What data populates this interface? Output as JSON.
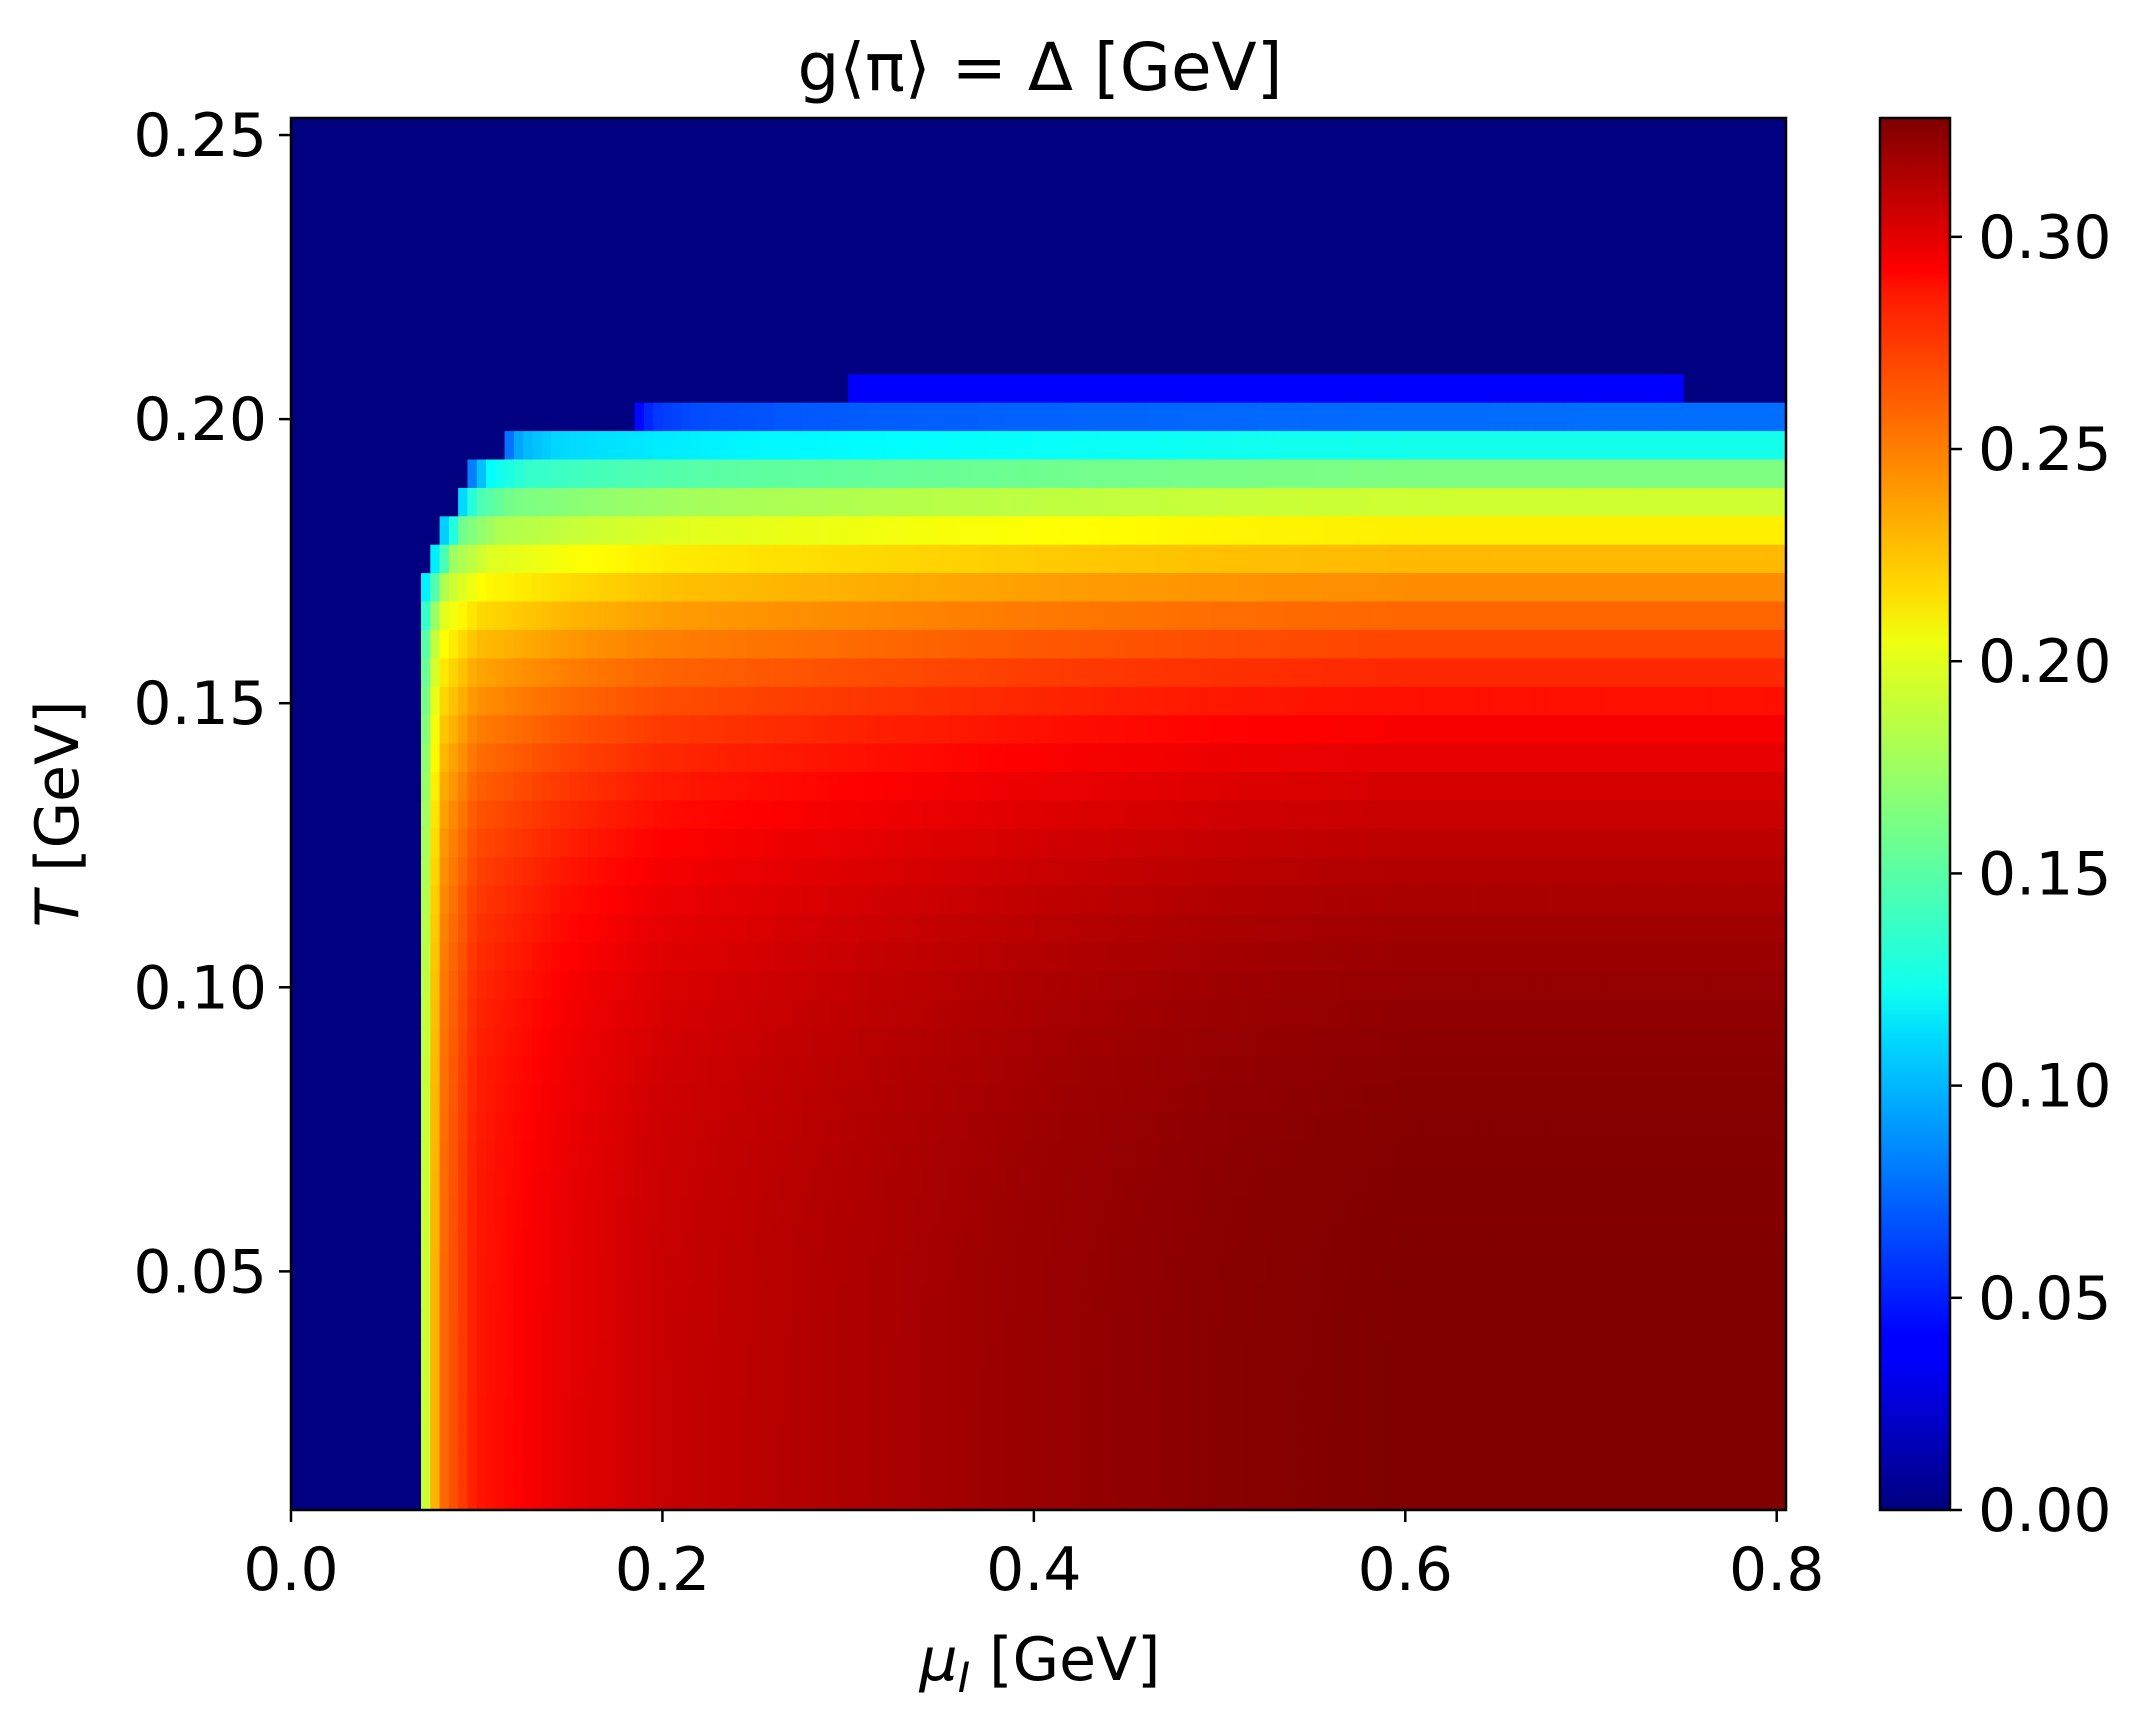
{
  "chart_data": {
    "type": "heatmap",
    "title": "g⟨π⟩ = Δ [GeV]",
    "xlabel": "μI [GeV]",
    "ylabel": "T [GeV]",
    "xlim": [
      0.0,
      0.805
    ],
    "ylim": [
      0.008,
      0.253
    ],
    "x_ticks": [
      "0.0",
      "0.2",
      "0.4",
      "0.6",
      "0.8"
    ],
    "x_tick_values": [
      0.0,
      0.2,
      0.4,
      0.6,
      0.8
    ],
    "y_ticks": [
      "0.05",
      "0.10",
      "0.15",
      "0.20",
      "0.25"
    ],
    "y_tick_values": [
      0.05,
      0.1,
      0.15,
      0.2,
      0.25
    ],
    "colormap": "jet",
    "colorbar": {
      "range": [
        0.0,
        0.328
      ],
      "ticks": [
        "0.00",
        "0.05",
        "0.10",
        "0.15",
        "0.20",
        "0.25",
        "0.30"
      ],
      "tick_values": [
        0.0,
        0.05,
        0.1,
        0.15,
        0.2,
        0.25,
        0.3
      ]
    },
    "grid": false,
    "model": {
      "description_values": "Δ(μI, T) read from colors: 0 for μI below onset ≈0.069 GeV or T above ≈0.203 GeV; plateau rises with μI to ≈0.328 GeV near μI≈0.6–0.8 at low T",
      "onset_mu": 0.069,
      "onset_mu_fast_rise_to": 0.135,
      "delta_low_T_by_mu": [
        [
          0.069,
          0.16
        ],
        [
          0.08,
          0.25
        ],
        [
          0.1,
          0.28
        ],
        [
          0.15,
          0.295
        ],
        [
          0.2,
          0.305
        ],
        [
          0.3,
          0.313
        ],
        [
          0.4,
          0.32
        ],
        [
          0.5,
          0.325
        ],
        [
          0.6,
          0.328
        ],
        [
          0.8,
          0.328
        ]
      ],
      "critical_T": 0.203,
      "faint_band_T": [
        0.203,
        0.208
      ],
      "faint_band_mu": [
        0.3,
        0.75
      ],
      "faint_band_value": 0.04,
      "T_grid_step": 0.005,
      "mu_grid_step": 0.01
    }
  }
}
